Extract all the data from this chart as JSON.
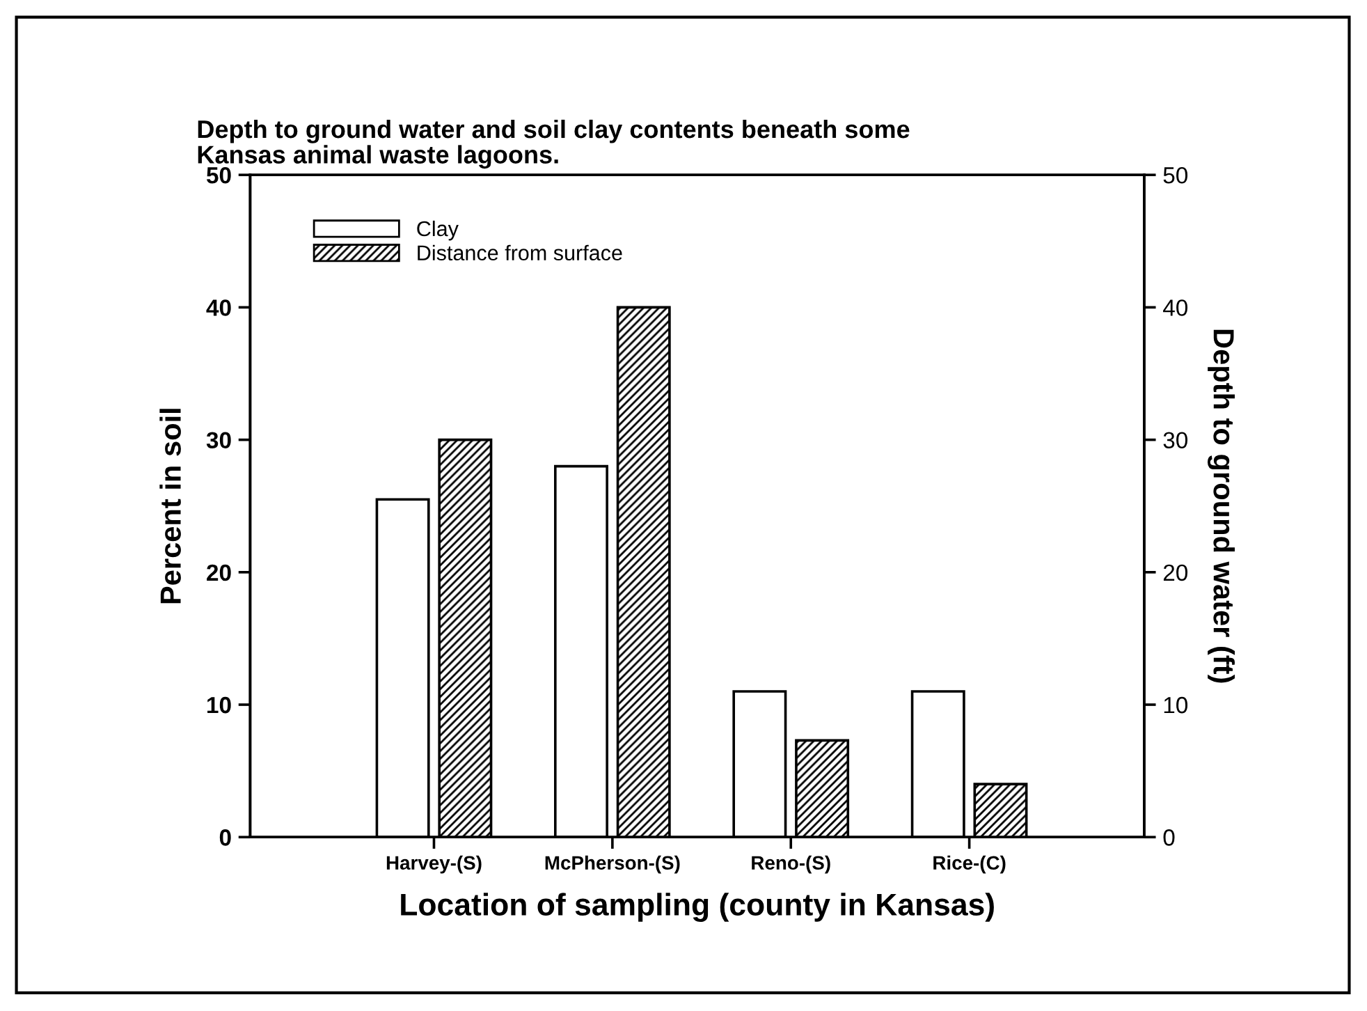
{
  "chart_data": {
    "type": "bar",
    "title": "Depth to ground water and soil clay contents beneath some\nKansas animal waste lagoons.",
    "xlabel": "Location of sampling (county in Kansas)",
    "ylabel": "Percent in soil",
    "y2label": "Depth to ground water (ft)",
    "categories": [
      "Harvey-(S)",
      "McPherson-(S)",
      "Reno-(S)",
      "Rice-(C)"
    ],
    "series": [
      {
        "name": "Clay",
        "color": "#ffffff",
        "values": [
          25.5,
          28,
          11,
          11
        ]
      },
      {
        "name": "Distance from surface",
        "color": "#000000",
        "axis": "y2",
        "values": [
          30,
          40,
          7.3,
          4
        ]
      }
    ],
    "ylim": [
      0,
      50
    ],
    "yticks": [
      0,
      10,
      20,
      30,
      40,
      50
    ],
    "y2lim": [
      0,
      50
    ],
    "y2ticks": [
      0,
      10,
      20,
      30,
      40,
      50
    ],
    "grid": false,
    "legend": "top left"
  }
}
